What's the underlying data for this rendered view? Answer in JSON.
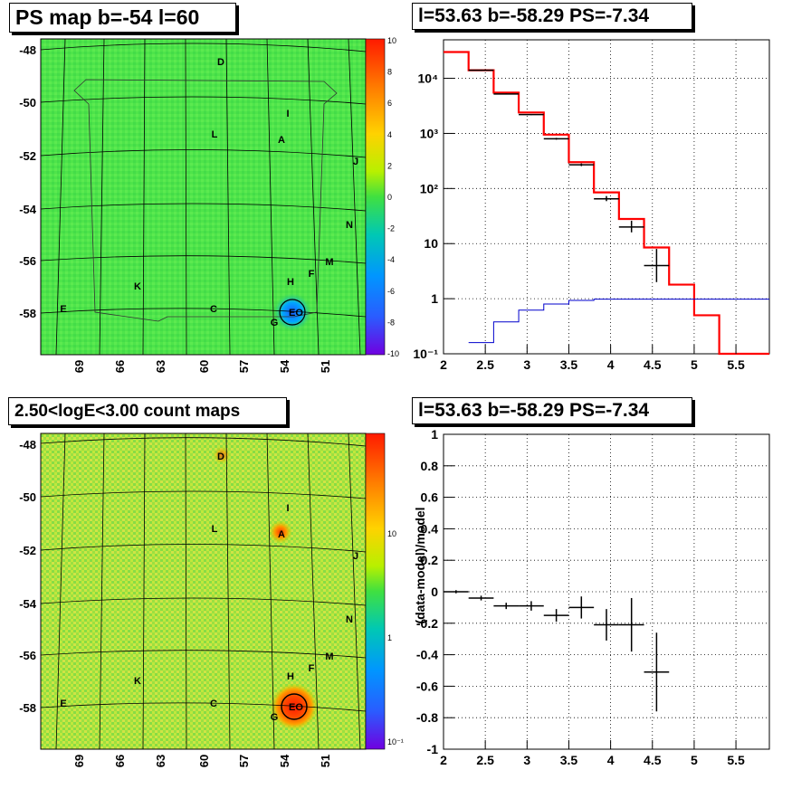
{
  "titles": {
    "top_left": "PS map b=-54 l=60",
    "top_right": "l=53.63 b=-58.29 PS=-7.34",
    "bottom_left": "2.50<logE<3.00 count maps",
    "bottom_right": "l=53.63 b=-58.29 PS=-7.34"
  },
  "colors": {
    "model_line": "#ff0000",
    "background_line": "#0000cc",
    "data_markers": "#000000",
    "grid": "#000000"
  },
  "maps": {
    "y_ticks": [
      "-48",
      "-50",
      "-52",
      "-54",
      "-56",
      "-58"
    ],
    "x_ticks": [
      "69",
      "66",
      "63",
      "60",
      "57",
      "54",
      "51"
    ],
    "sources": [
      "D",
      "I",
      "L",
      "A",
      "J",
      "N",
      "M",
      "F",
      "H",
      "K",
      "C",
      "E",
      "G",
      "EO"
    ],
    "ps_colorbar": {
      "ticks": [
        "10",
        "8",
        "6",
        "4",
        "2",
        "0",
        "-2",
        "-4",
        "-6",
        "-8",
        "-10"
      ],
      "range": [
        -10,
        10
      ]
    },
    "count_colorbar": {
      "ticks": [
        "10",
        "1",
        "10⁻¹"
      ]
    }
  },
  "chart_data": [
    {
      "type": "line",
      "panel": "spectrum",
      "xlabel": "",
      "ylabel": "",
      "log_y": true,
      "xlim": [
        2,
        5.9
      ],
      "ylim": [
        0.1,
        50000
      ],
      "x_ticks": [
        "2",
        "2.5",
        "3",
        "3.5",
        "4",
        "4.5",
        "5",
        "5.5"
      ],
      "y_ticks": [
        "10⁴",
        "10³",
        "10²",
        "10",
        "1",
        "10⁻¹"
      ],
      "grid": true,
      "series": [
        {
          "style": "step-red",
          "bin_edges": [
            2.0,
            2.3,
            2.6,
            2.9,
            3.2,
            3.5,
            3.8,
            4.1,
            4.4,
            4.7,
            5.0,
            5.3,
            5.9
          ],
          "values": [
            30000,
            14000,
            5500,
            2400,
            950,
            300,
            85,
            28,
            8.5,
            1.8,
            0.5,
            0.1
          ]
        },
        {
          "style": "step-blue",
          "bin_edges": [
            2.3,
            2.6,
            2.9,
            3.2,
            3.5,
            3.8,
            5.9
          ],
          "values": [
            0.16,
            0.38,
            0.62,
            0.8,
            0.93,
            0.98
          ]
        },
        {
          "style": "points-black",
          "x": [
            2.45,
            2.75,
            3.05,
            3.35,
            3.65,
            3.95,
            4.25,
            4.55
          ],
          "y": [
            14000,
            5200,
            2200,
            800,
            270,
            65,
            20,
            4
          ],
          "xerr": [
            0.15,
            0.15,
            0.15,
            0.15,
            0.15,
            0.15,
            0.15,
            0.15
          ],
          "yerr_low": [
            400,
            120,
            50,
            30,
            15,
            6,
            4,
            2
          ],
          "yerr_high": [
            400,
            120,
            50,
            30,
            15,
            8,
            6,
            4
          ]
        }
      ]
    },
    {
      "type": "scatter",
      "panel": "residuals",
      "xlabel": "",
      "ylabel": "(data-model)/model",
      "xlim": [
        2,
        5.9
      ],
      "ylim": [
        -1,
        1
      ],
      "x_ticks": [
        "2",
        "2.5",
        "3",
        "3.5",
        "4",
        "4.5",
        "5",
        "5.5"
      ],
      "y_ticks": [
        "1",
        "0.8",
        "0.6",
        "0.4",
        "0.2",
        "0",
        "-0.2",
        "-0.4",
        "-0.6",
        "-0.8",
        "-1"
      ],
      "grid": true,
      "series": [
        {
          "style": "points-black",
          "x": [
            2.15,
            2.45,
            2.75,
            3.05,
            3.35,
            3.65,
            3.95,
            4.25,
            4.55
          ],
          "y": [
            0.0,
            -0.04,
            -0.09,
            -0.09,
            -0.15,
            -0.1,
            -0.21,
            -0.21,
            -0.51
          ],
          "xerr": [
            0.15,
            0.15,
            0.15,
            0.15,
            0.15,
            0.15,
            0.15,
            0.15,
            0.15
          ],
          "yerr": [
            0.01,
            0.015,
            0.02,
            0.03,
            0.04,
            0.07,
            0.1,
            0.17,
            0.25
          ]
        }
      ]
    }
  ]
}
